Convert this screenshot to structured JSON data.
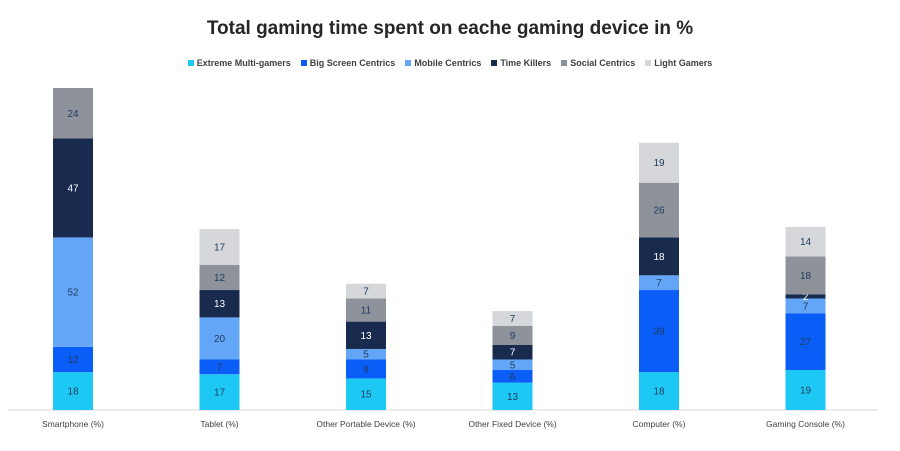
{
  "chart_data": {
    "type": "bar",
    "stacked": true,
    "title": "Total gaming time spent on eache gaming device in %",
    "legend_position": "top",
    "categories": [
      "Smartphone (%)",
      "Tablet (%)",
      "Other Portable Device (%)",
      "Other Fixed Device (%)",
      "Computer (%)",
      "Gaming Console (%)"
    ],
    "series": [
      {
        "name": "Extreme Multi-gamers",
        "color": "#1ec8f5",
        "values": [
          18,
          17,
          15,
          13,
          18,
          19
        ]
      },
      {
        "name": "Big Screen Centrics",
        "color": "#0a5ef7",
        "values": [
          12,
          7,
          9,
          6,
          39,
          27
        ]
      },
      {
        "name": "Mobile Centrics",
        "color": "#63a6f7",
        "values": [
          52,
          20,
          5,
          5,
          7,
          7
        ]
      },
      {
        "name": "Time Killers",
        "color": "#182a4d",
        "values": [
          47,
          13,
          13,
          7,
          18,
          2
        ]
      },
      {
        "name": "Social Centrics",
        "color": "#8e929b",
        "values": [
          24,
          12,
          11,
          9,
          26,
          18
        ]
      },
      {
        "name": "Light Gamers",
        "color": "#d6d7da",
        "values": [
          null,
          17,
          7,
          7,
          19,
          14
        ]
      }
    ],
    "label_colors": {
      "#1ec8f5": "#1f3b5c",
      "#0a5ef7": "#1f3b5c",
      "#63a6f7": "#1f3b5c",
      "#182a4d": "#ffffff",
      "#8e929b": "#1f3b5c",
      "#d6d7da": "#1f3b5c"
    },
    "ylim": [
      0,
      153
    ],
    "grid": false,
    "axis_color": "#d9d9d9",
    "tick_label_color": "#404040"
  }
}
